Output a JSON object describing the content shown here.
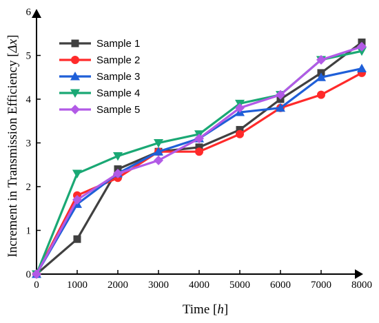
{
  "chart_data": {
    "type": "line",
    "title": "",
    "x": [
      0,
      1000,
      2000,
      3000,
      4000,
      5000,
      6000,
      7000,
      8000
    ],
    "xlabel": "Time [",
    "xlabel_unit": "h",
    "xlabel_end": "]",
    "ylabel": "Increment in Transmission Efficiency [",
    "ylabel_unit": "Δx",
    "ylabel_end": "]",
    "xlim": [
      0,
      8000
    ],
    "ylim": [
      0,
      6
    ],
    "xticks": [
      "0",
      "1000",
      "2000",
      "3000",
      "4000",
      "5000",
      "6000",
      "7000",
      "8000"
    ],
    "yticks": [
      "0",
      "1",
      "2",
      "3",
      "4",
      "5",
      "6"
    ],
    "grid": false,
    "legend_position": "top-left",
    "series": [
      {
        "name": "Sample 1",
        "color": "#404040",
        "marker": "square",
        "values": [
          0,
          0.8,
          2.4,
          2.8,
          2.9,
          3.3,
          4.0,
          4.6,
          5.3
        ]
      },
      {
        "name": "Sample 2",
        "color": "#ff2a2a",
        "marker": "circle",
        "values": [
          0,
          1.8,
          2.2,
          2.8,
          2.8,
          3.2,
          3.8,
          4.1,
          4.6
        ]
      },
      {
        "name": "Sample 3",
        "color": "#1f5fd8",
        "marker": "triangle-up",
        "values": [
          0,
          1.6,
          2.3,
          2.8,
          3.1,
          3.7,
          3.8,
          4.5,
          4.7
        ]
      },
      {
        "name": "Sample 4",
        "color": "#1aa874",
        "marker": "triangle-down",
        "values": [
          0,
          2.3,
          2.7,
          3.0,
          3.2,
          3.9,
          4.1,
          4.9,
          5.1
        ]
      },
      {
        "name": "Sample 5",
        "color": "#b25ae6",
        "marker": "diamond",
        "values": [
          0,
          1.7,
          2.3,
          2.6,
          3.1,
          3.8,
          4.1,
          4.9,
          5.2
        ]
      }
    ]
  }
}
